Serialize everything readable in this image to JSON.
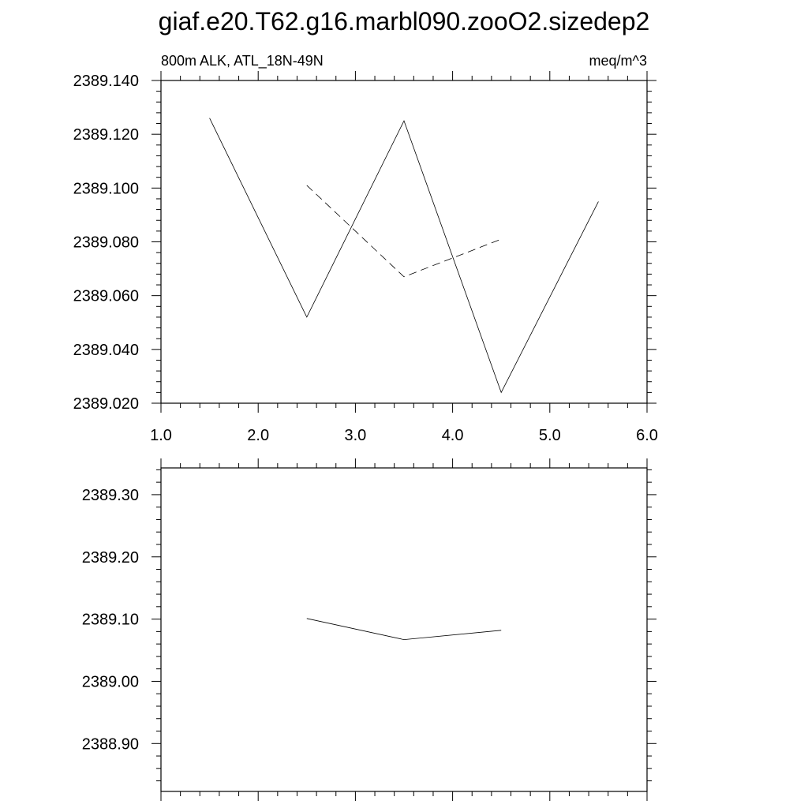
{
  "title": "giaf.e20.T62.g16.marbl090.zooO2.sizedep2",
  "chart_data": [
    {
      "type": "line",
      "subtitle_left": "800m ALK, ATL_18N-49N",
      "subtitle_right": "meq/m^3",
      "xlim": [
        1.0,
        6.0
      ],
      "ylim": [
        2389.02,
        2389.14
      ],
      "x_ticks": [
        "1.0",
        "2.0",
        "3.0",
        "4.0",
        "5.0",
        "6.0"
      ],
      "x_tick_values": [
        1,
        2,
        3,
        4,
        5,
        6
      ],
      "y_ticks": [
        "2389.020",
        "2389.040",
        "2389.060",
        "2389.080",
        "2389.100",
        "2389.120",
        "2389.140"
      ],
      "y_tick_values": [
        2389.02,
        2389.04,
        2389.06,
        2389.08,
        2389.1,
        2389.12,
        2389.14
      ],
      "x_minor_step": 0.2,
      "y_minor_step": 0.004,
      "series": [
        {
          "style": "solid",
          "color": "#000000",
          "x": [
            1.5,
            2.5,
            3.5,
            4.5,
            5.5
          ],
          "y": [
            2389.126,
            2389.052,
            2389.125,
            2389.024,
            2389.095
          ]
        },
        {
          "style": "dashed",
          "color": "#000000",
          "x": [
            2.5,
            3.5,
            4.5
          ],
          "y": [
            2389.101,
            2389.067,
            2389.081
          ]
        }
      ]
    },
    {
      "type": "line",
      "xlim": [
        1.0,
        6.0
      ],
      "ylim": [
        2388.823,
        2389.343
      ],
      "x_tick_values": [
        1,
        2,
        3,
        4,
        5,
        6
      ],
      "y_ticks": [
        "2388.90",
        "2389.00",
        "2389.10",
        "2389.20",
        "2389.30"
      ],
      "y_tick_values": [
        2388.9,
        2389.0,
        2389.1,
        2389.2,
        2389.3
      ],
      "x_minor_step": 0.2,
      "y_minor_step": 0.02,
      "series": [
        {
          "style": "solid",
          "color": "#000000",
          "x": [
            2.5,
            3.5,
            4.5
          ],
          "y": [
            2389.101,
            2389.067,
            2389.082
          ]
        }
      ]
    }
  ]
}
